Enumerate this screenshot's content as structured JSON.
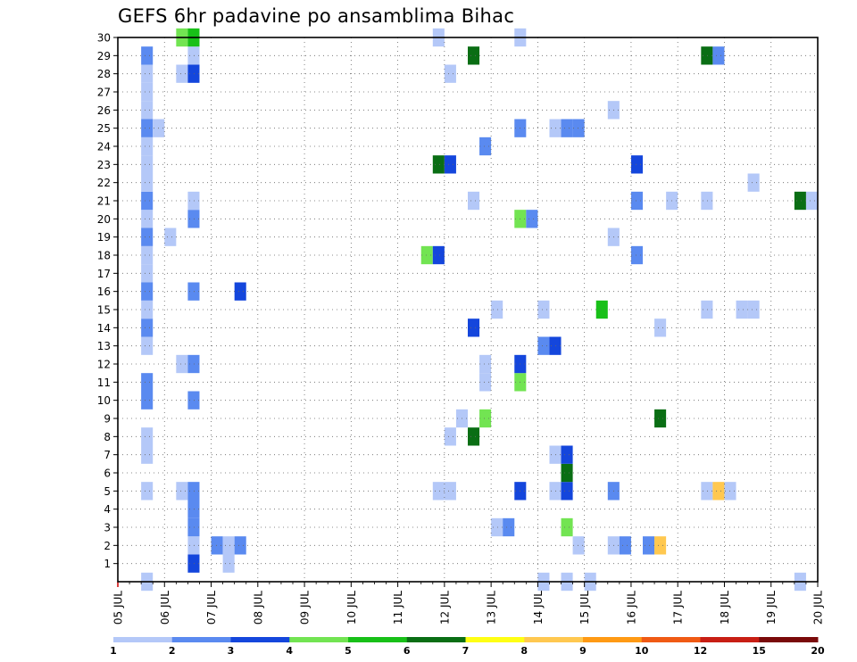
{
  "chart_data": {
    "type": "heatmap",
    "title": "GEFS 6hr padavine po ansamblima Bihac",
    "xlabel": "",
    "ylabel": "",
    "x_tick_labels": [
      "05 JUL",
      "06 JUL",
      "07 JUL",
      "08 JUL",
      "09 JUL",
      "10 JUL",
      "11 JUL",
      "12 JUL",
      "13 JUL",
      "14 JUL",
      "15 JUL",
      "16 JUL",
      "17 JUL",
      "18 JUL",
      "19 JUL",
      "20 JUL"
    ],
    "y_tick_labels": [
      "1",
      "2",
      "3",
      "4",
      "5",
      "6",
      "7",
      "8",
      "9",
      "10",
      "11",
      "12",
      "13",
      "14",
      "15",
      "16",
      "17",
      "18",
      "19",
      "20",
      "21",
      "22",
      "23",
      "24",
      "25",
      "26",
      "27",
      "28",
      "29",
      "30"
    ],
    "xlim_days": [
      5,
      20
    ],
    "time_step_hours": 6,
    "ylim_members": [
      0,
      30
    ],
    "grid": true,
    "colorbar": {
      "tick_labels": [
        "1",
        "2",
        "3",
        "4",
        "5",
        "6",
        "7",
        "8",
        "9",
        "10",
        "12",
        "15",
        "20"
      ],
      "colors": [
        "#b4c8f8",
        "#5a8af0",
        "#1446dc",
        "#72e452",
        "#18c018",
        "#0a6e14",
        "#ffff14",
        "#ffc850",
        "#ff9a14",
        "#f05a14",
        "#c81e14",
        "#7a0a0a"
      ]
    },
    "cells": [
      [
        5.5,
        0,
        1
      ],
      [
        5.5,
        5,
        1
      ],
      [
        5.5,
        7,
        1
      ],
      [
        5.5,
        8,
        1
      ],
      [
        5.5,
        10,
        2
      ],
      [
        5.5,
        11,
        2
      ],
      [
        5.5,
        13,
        1
      ],
      [
        5.5,
        14,
        2
      ],
      [
        5.5,
        15,
        1
      ],
      [
        5.5,
        16,
        2
      ],
      [
        5.5,
        17,
        1
      ],
      [
        5.5,
        18,
        1
      ],
      [
        5.5,
        19,
        2
      ],
      [
        5.5,
        20,
        1
      ],
      [
        5.5,
        21,
        2
      ],
      [
        5.5,
        22,
        1
      ],
      [
        5.5,
        23,
        1
      ],
      [
        5.5,
        24,
        1
      ],
      [
        5.5,
        25,
        2
      ],
      [
        5.5,
        26,
        1
      ],
      [
        5.5,
        27,
        1
      ],
      [
        5.5,
        28,
        1
      ],
      [
        5.5,
        29,
        2
      ],
      [
        5.75,
        25,
        1
      ],
      [
        6.0,
        19,
        1
      ],
      [
        6.25,
        5,
        1
      ],
      [
        6.25,
        12,
        1
      ],
      [
        6.25,
        28,
        1
      ],
      [
        6.25,
        30,
        4
      ],
      [
        6.5,
        1,
        3
      ],
      [
        6.5,
        2,
        1
      ],
      [
        6.5,
        3,
        2
      ],
      [
        6.5,
        4,
        2
      ],
      [
        6.5,
        5,
        2
      ],
      [
        6.5,
        10,
        2
      ],
      [
        6.5,
        12,
        2
      ],
      [
        6.5,
        16,
        2
      ],
      [
        6.5,
        20,
        2
      ],
      [
        6.5,
        21,
        1
      ],
      [
        6.5,
        28,
        3
      ],
      [
        6.5,
        29,
        1
      ],
      [
        6.5,
        30,
        5
      ],
      [
        7.0,
        2,
        2
      ],
      [
        7.25,
        1,
        1
      ],
      [
        7.25,
        2,
        1
      ],
      [
        7.5,
        2,
        2
      ],
      [
        7.5,
        16,
        3
      ],
      [
        11.5,
        18,
        4
      ],
      [
        11.75,
        5,
        1
      ],
      [
        11.75,
        18,
        3
      ],
      [
        11.75,
        23,
        6
      ],
      [
        11.75,
        30,
        1
      ],
      [
        12.0,
        5,
        1
      ],
      [
        12.0,
        8,
        1
      ],
      [
        12.0,
        23,
        3
      ],
      [
        12.0,
        28,
        1
      ],
      [
        12.25,
        9,
        1
      ],
      [
        12.5,
        8,
        6
      ],
      [
        12.5,
        14,
        3
      ],
      [
        12.5,
        21,
        1
      ],
      [
        12.5,
        29,
        6
      ],
      [
        12.75,
        9,
        4
      ],
      [
        12.75,
        11,
        1
      ],
      [
        12.75,
        12,
        1
      ],
      [
        12.75,
        24,
        2
      ],
      [
        13.0,
        3,
        1
      ],
      [
        13.0,
        15,
        1
      ],
      [
        13.25,
        3,
        2
      ],
      [
        13.5,
        5,
        3
      ],
      [
        13.5,
        11,
        4
      ],
      [
        13.5,
        12,
        3
      ],
      [
        13.5,
        20,
        4
      ],
      [
        13.5,
        25,
        2
      ],
      [
        13.5,
        30,
        1
      ],
      [
        13.75,
        20,
        2
      ],
      [
        14.0,
        0,
        1
      ],
      [
        14.0,
        13,
        2
      ],
      [
        14.0,
        15,
        1
      ],
      [
        14.25,
        5,
        1
      ],
      [
        14.25,
        7,
        1
      ],
      [
        14.25,
        13,
        3
      ],
      [
        14.25,
        25,
        1
      ],
      [
        14.5,
        0,
        1
      ],
      [
        14.5,
        3,
        4
      ],
      [
        14.5,
        5,
        3
      ],
      [
        14.5,
        6,
        6
      ],
      [
        14.5,
        7,
        3
      ],
      [
        14.5,
        25,
        2
      ],
      [
        14.75,
        2,
        1
      ],
      [
        14.75,
        25,
        2
      ],
      [
        15.0,
        0,
        1
      ],
      [
        15.25,
        15,
        5
      ],
      [
        15.5,
        2,
        1
      ],
      [
        15.5,
        5,
        2
      ],
      [
        15.5,
        19,
        1
      ],
      [
        15.5,
        26,
        1
      ],
      [
        15.75,
        2,
        2
      ],
      [
        16.0,
        18,
        2
      ],
      [
        16.0,
        21,
        2
      ],
      [
        16.0,
        23,
        3
      ],
      [
        16.25,
        2,
        2
      ],
      [
        16.5,
        2,
        8
      ],
      [
        16.5,
        9,
        6
      ],
      [
        16.5,
        14,
        1
      ],
      [
        16.75,
        21,
        1
      ],
      [
        17.5,
        5,
        1
      ],
      [
        17.5,
        15,
        1
      ],
      [
        17.5,
        21,
        1
      ],
      [
        17.5,
        29,
        6
      ],
      [
        17.75,
        5,
        8
      ],
      [
        17.75,
        29,
        2
      ],
      [
        18.0,
        5,
        1
      ],
      [
        18.25,
        15,
        1
      ],
      [
        18.5,
        15,
        1
      ],
      [
        18.5,
        22,
        1
      ],
      [
        19.5,
        0,
        1
      ],
      [
        19.5,
        21,
        6
      ],
      [
        19.75,
        21,
        1
      ]
    ]
  }
}
